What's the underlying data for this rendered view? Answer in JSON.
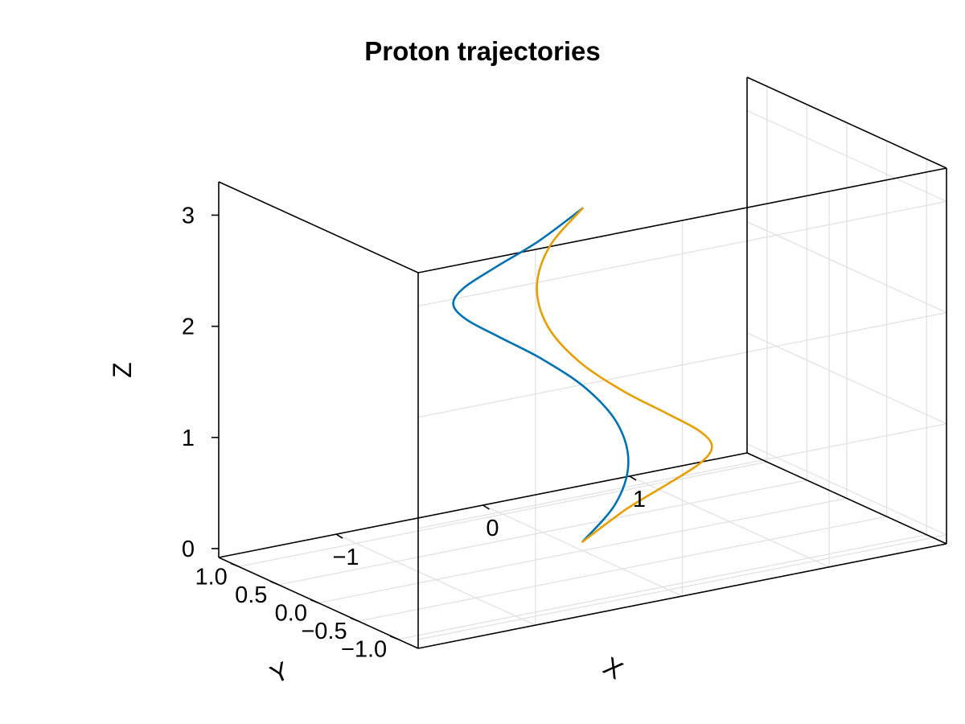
{
  "chart_data": {
    "type": "line3d",
    "title": "Proton trajectories",
    "xlabel": "X",
    "ylabel": "Y",
    "zlabel": "Z",
    "xlim": [
      -1.8,
      1.8
    ],
    "ylim": [
      -1.25,
      1.25
    ],
    "zlim": [
      -0.08,
      3.3
    ],
    "x_ticks": [
      {
        "value": -1,
        "label": "−1"
      },
      {
        "value": 0,
        "label": "0"
      },
      {
        "value": 1,
        "label": "1"
      }
    ],
    "y_ticks": [
      {
        "value": 1.0,
        "label": "1.0"
      },
      {
        "value": 0.5,
        "label": "0.5"
      },
      {
        "value": 0.0,
        "label": "0.0"
      },
      {
        "value": -0.5,
        "label": "−0.5"
      },
      {
        "value": -1.0,
        "label": "−1.0"
      }
    ],
    "z_ticks": [
      {
        "value": 0,
        "label": "0"
      },
      {
        "value": 1,
        "label": "1"
      },
      {
        "value": 2,
        "label": "2"
      },
      {
        "value": 3,
        "label": "3"
      }
    ],
    "grid": true,
    "series": [
      {
        "color": "#0072b2",
        "x": [
          0.0,
          0.262,
          0.454,
          0.524,
          0.454,
          0.262,
          0.0,
          -0.262,
          -0.454,
          -0.524,
          -0.454,
          -0.262,
          0.0
        ],
        "y": [
          0.0,
          0.07,
          0.262,
          0.524,
          0.786,
          0.978,
          1.048,
          0.978,
          0.786,
          0.524,
          0.262,
          0.07,
          0.0
        ],
        "z": [
          0.0,
          0.25,
          0.5,
          0.75,
          1.0,
          1.25,
          1.5,
          1.75,
          2.0,
          2.25,
          2.5,
          2.75,
          3.0
        ]
      },
      {
        "color": "#e69f00",
        "x": [
          0.0,
          0.262,
          0.454,
          0.524,
          0.454,
          0.262,
          0.0,
          -0.262,
          -0.454,
          -0.524,
          -0.454,
          -0.262,
          0.0
        ],
        "y": [
          0.0,
          -0.07,
          -0.262,
          -0.524,
          -0.786,
          -0.978,
          -1.048,
          -0.978,
          -0.786,
          -0.524,
          -0.262,
          -0.07,
          0.0
        ],
        "z": [
          0.0,
          0.25,
          0.5,
          0.75,
          1.0,
          1.25,
          1.5,
          1.75,
          2.0,
          2.25,
          2.5,
          2.75,
          3.0
        ]
      }
    ]
  }
}
